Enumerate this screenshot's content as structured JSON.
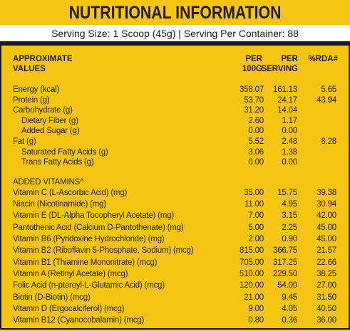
{
  "header": {
    "title": "NUTRITIONAL INFORMATION",
    "serving": "Serving Size: 1 Scoop (45g) | Serving Per Container: 88"
  },
  "table": {
    "columns": [
      "APPROXIMATE VALUES",
      "PER 100G",
      "PER SERVING",
      "%RDA#"
    ],
    "sections": [
      {
        "rows": [
          {
            "cells": [
              "Energy (kcal)",
              "358.07",
              "161.13",
              "5.65"
            ]
          },
          {
            "cells": [
              "Protein (g)",
              "53.70",
              "24.17",
              "43.94"
            ]
          },
          {
            "cells": [
              "Carbohydrate (g)",
              "31.20",
              "14.04"
            ],
            "sub": [
              {
                "cells": [
                  "Dietary Fiber (g)",
                  "2.60",
                  "1.17"
                ]
              },
              {
                "cells": [
                  "Added Sugar (g)",
                  "0.00",
                  "0.00"
                ]
              }
            ]
          },
          {
            "cells": [
              "Fat (g)",
              "5.52",
              "2.48",
              "8.28"
            ],
            "sub": [
              {
                "cells": [
                  "Saturated Fatty Acids (g)",
                  "3.06",
                  "1.38"
                ]
              },
              {
                "cells": [
                  "Trans Fatty Acids (g)",
                  "0.00",
                  "0.00"
                ]
              }
            ]
          }
        ]
      },
      {
        "heading": "ADDED VITAMINS^",
        "rows": [
          {
            "cells": [
              "Vitamin C (L-Ascorbic Acid) (mg)",
              "35.00",
              "15.75",
              "39.38"
            ]
          },
          {
            "cells": [
              "Niacin (Nicotinamide) (mg)",
              "11.00",
              "4.95",
              "30.94"
            ]
          },
          {
            "cells": [
              "Vitamin E (DL-Alpha Tocopheryl Acetate) (mg)",
              "7.00",
              "3.15",
              "42.00"
            ]
          },
          {
            "cells": [
              "Pantothenic Acid (Calcium D-Pantothenate) (mg)",
              "5.00",
              "2.25",
              "45.00"
            ]
          },
          {
            "cells": [
              "Vitamin B6 (Pyridoxine Hydrochloride) (mg)",
              "2.00",
              "0.90",
              "45.00"
            ]
          },
          {
            "cells": [
              "Vitamin B2 (Riboflavin 5-Phosphate, Sodium) (mcg)",
              "815.00",
              "366.75",
              "21.57"
            ]
          },
          {
            "cells": [
              "Vitamin B1 (Thiamine Mononitrate) (mcg)",
              "705.00",
              "317.25",
              "22.66"
            ]
          },
          {
            "cells": [
              "Vitamin A (Retinyl Acetate) (mcg)",
              "510.00",
              "229.50",
              "38.25"
            ]
          },
          {
            "cells": [
              "Folic Acid (n-pteroyl-L-Glutamic Acid) (mcg)",
              "120.00",
              "54.00",
              "27.00"
            ]
          },
          {
            "cells": [
              "Biotin (D-Biotin) (mcg)",
              "21.00",
              "9.45",
              "31.50"
            ]
          },
          {
            "cells": [
              "Vitamin D (Ergocalciferol) (mcg)",
              "9.00",
              "4.05",
              "40.50"
            ]
          },
          {
            "cells": [
              "Vitamin B12 (Cyanocobalamin) (mcg)",
              "0.80",
              "0.36",
              "36.00"
            ]
          }
        ]
      }
    ]
  }
}
